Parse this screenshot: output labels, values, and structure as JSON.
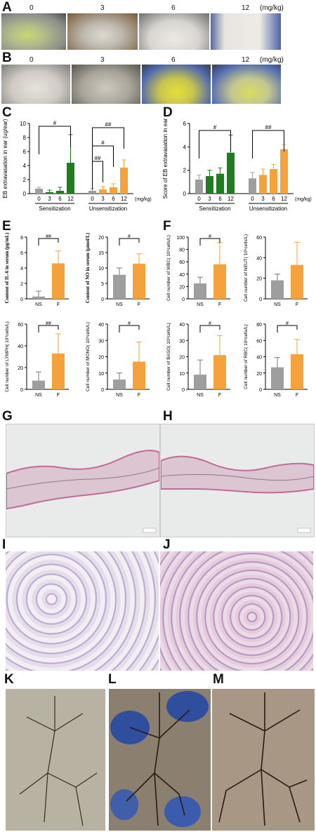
{
  "panels": {
    "A": {
      "label": "A",
      "doses": [
        "0",
        "3",
        "6",
        "12"
      ],
      "unit": "(mg/kg)"
    },
    "B": {
      "label": "B",
      "doses": [
        "0",
        "3",
        "6",
        "12"
      ],
      "unit": "(mg/kg)"
    },
    "C": {
      "label": "C"
    },
    "D": {
      "label": "D"
    },
    "E": {
      "label": "E"
    },
    "F": {
      "label": "F"
    },
    "G": {
      "label": "G"
    },
    "H": {
      "label": "H"
    },
    "I": {
      "label": "I"
    },
    "J": {
      "label": "J"
    },
    "K": {
      "label": "K"
    },
    "L": {
      "label": "L"
    },
    "M": {
      "label": "M"
    }
  },
  "colors": {
    "ns": "#9e9e9e",
    "sens": "#1f7d1f",
    "unsens": "#f5a23c",
    "ns_err": "#777777",
    "skin": "#c98aa8"
  },
  "chart_data": [
    {
      "id": "C",
      "type": "bar",
      "ylabel": "EB extravasation in ear (ug/ear)",
      "ylim": [
        0,
        10
      ],
      "yticks": [
        "0",
        "2",
        "4",
        "6",
        "8",
        "10"
      ],
      "xticklabels": [
        "0",
        "3",
        "6",
        "12",
        "0",
        "3",
        "6",
        "12"
      ],
      "unit": "(mg/kg)",
      "groups": [
        "Sensitization",
        "Unsensitization"
      ],
      "values": [
        0.7,
        0.2,
        0.4,
        4.4,
        0.4,
        0.6,
        0.9,
        3.7
      ],
      "errors": [
        0.2,
        0.3,
        0.5,
        4.0,
        0.3,
        0.4,
        0.5,
        1.1
      ],
      "annotations": [
        "#",
        "##",
        "#",
        "##"
      ]
    },
    {
      "id": "D",
      "type": "bar",
      "ylabel": "Score of EB extravasation in ear",
      "ylim": [
        0,
        6
      ],
      "yticks": [
        "0",
        "2",
        "4",
        "6"
      ],
      "xticklabels": [
        "0",
        "3",
        "6",
        "12",
        "0",
        "3",
        "6",
        "12"
      ],
      "unit": "(mg/kg)",
      "groups": [
        "Sensitization",
        "Unsensitization"
      ],
      "values": [
        1.2,
        1.5,
        1.7,
        3.5,
        1.3,
        1.6,
        2.1,
        3.8
      ],
      "errors": [
        0.4,
        0.5,
        0.5,
        1.5,
        0.5,
        0.5,
        0.4,
        0.4
      ],
      "annotations": [
        "#",
        "##"
      ]
    },
    {
      "id": "E1",
      "type": "bar",
      "ylabel": "Content of IL-6 in serum (pg/mL)",
      "ylim": [
        0,
        8
      ],
      "yticks": [
        "0",
        "2",
        "4",
        "6",
        "8"
      ],
      "categories": [
        "NS",
        "F"
      ],
      "values": [
        0.3,
        4.6
      ],
      "errors": [
        0.7,
        1.6
      ],
      "annotation": "##"
    },
    {
      "id": "E2",
      "type": "bar",
      "ylabel": "Content of NO in serum (μmol/L)",
      "ylim": [
        0,
        20
      ],
      "yticks": [
        "0",
        "5",
        "10",
        "15",
        "20"
      ],
      "categories": [
        "NS",
        "F"
      ],
      "values": [
        7.8,
        11.4
      ],
      "errors": [
        2.2,
        3.2
      ],
      "annotation": "#"
    },
    {
      "id": "F1",
      "type": "bar",
      "ylabel": "Cell number of WBC( 10⁹cells/L)",
      "ylim": [
        0,
        100
      ],
      "yticks": [
        "0",
        "20",
        "40",
        "60",
        "80",
        "100"
      ],
      "categories": [
        "NS",
        "F"
      ],
      "values": [
        25,
        56
      ],
      "errors": [
        10,
        35
      ],
      "annotation": "#"
    },
    {
      "id": "F2",
      "type": "bar",
      "ylabel": "Cell number of NEUT( 10⁹cells/L)",
      "ylim": [
        0,
        60
      ],
      "yticks": [
        "0",
        "20",
        "40",
        "60"
      ],
      "categories": [
        "NS",
        "F"
      ],
      "values": [
        18,
        33
      ],
      "errors": [
        6,
        22
      ],
      "annotation": ""
    },
    {
      "id": "F3",
      "type": "bar",
      "ylabel": "Cell number of LYMPH( 10⁹cells/L)",
      "ylim": [
        0,
        60
      ],
      "yticks": [
        "0",
        "20",
        "40",
        "60"
      ],
      "categories": [
        "NS",
        "F"
      ],
      "values": [
        8,
        33
      ],
      "errors": [
        8,
        18
      ],
      "annotation": "##"
    },
    {
      "id": "F4",
      "type": "bar",
      "ylabel": "Cell number of MONO( 10⁹cells/L)",
      "ylim": [
        0,
        40
      ],
      "yticks": [
        "0",
        "10",
        "20",
        "30",
        "40"
      ],
      "categories": [
        "NS",
        "F"
      ],
      "values": [
        6,
        17
      ],
      "errors": [
        4,
        12
      ],
      "annotation": "#"
    },
    {
      "id": "F5",
      "type": "bar",
      "ylabel": "Cell number of BASO( 10⁹cells/L)",
      "ylim": [
        0,
        40
      ],
      "yticks": [
        "0",
        "10",
        "20",
        "30",
        "40"
      ],
      "categories": [
        "NS",
        "F"
      ],
      "values": [
        9,
        21
      ],
      "errors": [
        9,
        12
      ],
      "annotation": "#"
    },
    {
      "id": "F6",
      "type": "bar",
      "ylabel": "Cell number of RBC( 10⁹cells/L)",
      "ylim": [
        0,
        80
      ],
      "yticks": [
        "0",
        "20",
        "40",
        "60",
        "80"
      ],
      "categories": [
        "NS",
        "F"
      ],
      "values": [
        27,
        43
      ],
      "errors": [
        12,
        18
      ],
      "annotation": "#"
    }
  ]
}
